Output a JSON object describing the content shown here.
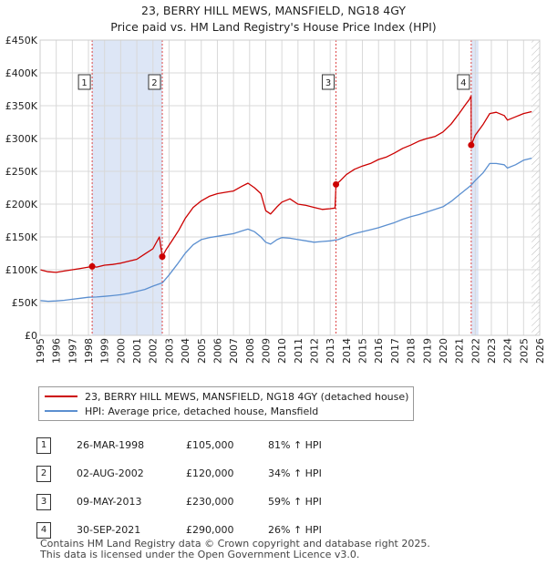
{
  "title_line1": "23, BERRY HILL MEWS, MANSFIELD, NG18 4GY",
  "title_line2": "Price paid vs. HM Land Registry's House Price Index (HPI)",
  "colors": {
    "property": "#cc0000",
    "hpi": "#5b8fd0",
    "shade": "#dde6f6",
    "grid": "#d8d8d8"
  },
  "chart_data": {
    "type": "line",
    "title": "Price paid vs. HM Land Registry's House Price Index (HPI)",
    "xlabel": "",
    "ylabel": "",
    "xlim": [
      1995,
      2026
    ],
    "ylim": [
      0,
      450000
    ],
    "x_ticks": [
      "1995",
      "1996",
      "1997",
      "1998",
      "1999",
      "2000",
      "2001",
      "2002",
      "2003",
      "2004",
      "2005",
      "2006",
      "2007",
      "2008",
      "2009",
      "2010",
      "2011",
      "2012",
      "2013",
      "2014",
      "2015",
      "2016",
      "2017",
      "2018",
      "2019",
      "2020",
      "2021",
      "2022",
      "2023",
      "2024",
      "2025",
      "2026"
    ],
    "y_ticks": [
      {
        "value": 0,
        "label": "£0"
      },
      {
        "value": 50000,
        "label": "£50K"
      },
      {
        "value": 100000,
        "label": "£100K"
      },
      {
        "value": 150000,
        "label": "£150K"
      },
      {
        "value": 200000,
        "label": "£200K"
      },
      {
        "value": 250000,
        "label": "£250K"
      },
      {
        "value": 300000,
        "label": "£300K"
      },
      {
        "value": 350000,
        "label": "£350K"
      },
      {
        "value": 400000,
        "label": "£400K"
      },
      {
        "value": 450000,
        "label": "£450K"
      }
    ],
    "shaded_periods": [
      [
        1998.23,
        2002.58
      ],
      [
        2021.75,
        2022.2
      ]
    ],
    "future_hatch_from": 2025.5,
    "series": [
      {
        "name": "23, BERRY HILL MEWS, MANSFIELD, NG18 4GY (detached house)",
        "color": "#cc0000",
        "points": [
          [
            1995.0,
            100000
          ],
          [
            1995.5,
            97000
          ],
          [
            1996.0,
            96000
          ],
          [
            1996.5,
            98000
          ],
          [
            1997.0,
            100000
          ],
          [
            1997.5,
            102000
          ],
          [
            1998.0,
            104000
          ],
          [
            1998.23,
            105000
          ],
          [
            1998.5,
            104000
          ],
          [
            1999.0,
            107000
          ],
          [
            1999.5,
            108000
          ],
          [
            2000.0,
            110000
          ],
          [
            2000.5,
            113000
          ],
          [
            2001.0,
            116000
          ],
          [
            2001.5,
            124000
          ],
          [
            2002.0,
            132000
          ],
          [
            2002.4,
            150000
          ],
          [
            2002.58,
            120000
          ],
          [
            2002.8,
            130000
          ],
          [
            2003.2,
            145000
          ],
          [
            2003.6,
            160000
          ],
          [
            2004.0,
            178000
          ],
          [
            2004.5,
            195000
          ],
          [
            2005.0,
            205000
          ],
          [
            2005.5,
            212000
          ],
          [
            2006.0,
            216000
          ],
          [
            2006.5,
            218000
          ],
          [
            2007.0,
            220000
          ],
          [
            2007.5,
            227000
          ],
          [
            2007.9,
            232000
          ],
          [
            2008.3,
            225000
          ],
          [
            2008.7,
            216000
          ],
          [
            2009.0,
            190000
          ],
          [
            2009.3,
            185000
          ],
          [
            2009.7,
            196000
          ],
          [
            2010.0,
            203000
          ],
          [
            2010.5,
            208000
          ],
          [
            2011.0,
            200000
          ],
          [
            2011.5,
            198000
          ],
          [
            2012.0,
            195000
          ],
          [
            2012.5,
            192000
          ],
          [
            2013.0,
            193000
          ],
          [
            2013.3,
            194000
          ],
          [
            2013.36,
            230000
          ],
          [
            2013.6,
            235000
          ],
          [
            2014.0,
            245000
          ],
          [
            2014.5,
            253000
          ],
          [
            2015.0,
            258000
          ],
          [
            2015.5,
            262000
          ],
          [
            2016.0,
            268000
          ],
          [
            2016.5,
            272000
          ],
          [
            2017.0,
            278000
          ],
          [
            2017.5,
            285000
          ],
          [
            2018.0,
            290000
          ],
          [
            2018.5,
            296000
          ],
          [
            2019.0,
            300000
          ],
          [
            2019.5,
            303000
          ],
          [
            2020.0,
            310000
          ],
          [
            2020.5,
            322000
          ],
          [
            2021.0,
            338000
          ],
          [
            2021.4,
            352000
          ],
          [
            2021.65,
            360000
          ],
          [
            2021.74,
            365000
          ],
          [
            2021.75,
            290000
          ],
          [
            2022.0,
            305000
          ],
          [
            2022.5,
            322000
          ],
          [
            2022.9,
            338000
          ],
          [
            2023.3,
            340000
          ],
          [
            2023.8,
            335000
          ],
          [
            2024.0,
            328000
          ],
          [
            2024.5,
            333000
          ],
          [
            2025.0,
            338000
          ],
          [
            2025.5,
            341000
          ]
        ]
      },
      {
        "name": "HPI: Average price, detached house, Mansfield",
        "color": "#5b8fd0",
        "points": [
          [
            1995.0,
            53000
          ],
          [
            1995.5,
            52000
          ],
          [
            1996.0,
            52500
          ],
          [
            1996.5,
            53500
          ],
          [
            1997.0,
            55000
          ],
          [
            1997.5,
            56500
          ],
          [
            1998.0,
            58000
          ],
          [
            1998.5,
            58500
          ],
          [
            1999.0,
            59500
          ],
          [
            1999.5,
            60500
          ],
          [
            2000.0,
            62000
          ],
          [
            2000.5,
            64000
          ],
          [
            2001.0,
            67000
          ],
          [
            2001.5,
            70000
          ],
          [
            2002.0,
            75000
          ],
          [
            2002.58,
            80000
          ],
          [
            2003.0,
            92000
          ],
          [
            2003.5,
            108000
          ],
          [
            2004.0,
            125000
          ],
          [
            2004.5,
            138000
          ],
          [
            2005.0,
            146000
          ],
          [
            2005.5,
            149000
          ],
          [
            2006.0,
            151000
          ],
          [
            2006.5,
            153000
          ],
          [
            2007.0,
            155000
          ],
          [
            2007.5,
            159000
          ],
          [
            2007.9,
            162000
          ],
          [
            2008.3,
            158000
          ],
          [
            2008.7,
            150000
          ],
          [
            2009.0,
            142000
          ],
          [
            2009.3,
            139000
          ],
          [
            2009.7,
            146000
          ],
          [
            2010.0,
            149000
          ],
          [
            2010.5,
            148000
          ],
          [
            2011.0,
            146000
          ],
          [
            2011.5,
            144000
          ],
          [
            2012.0,
            142000
          ],
          [
            2012.5,
            143000
          ],
          [
            2013.0,
            144000
          ],
          [
            2013.5,
            146000
          ],
          [
            2014.0,
            151000
          ],
          [
            2014.5,
            155000
          ],
          [
            2015.0,
            158000
          ],
          [
            2015.5,
            161000
          ],
          [
            2016.0,
            164000
          ],
          [
            2016.5,
            168000
          ],
          [
            2017.0,
            172000
          ],
          [
            2017.5,
            177000
          ],
          [
            2018.0,
            181000
          ],
          [
            2018.5,
            184000
          ],
          [
            2019.0,
            188000
          ],
          [
            2019.5,
            192000
          ],
          [
            2020.0,
            196000
          ],
          [
            2020.5,
            204000
          ],
          [
            2021.0,
            214000
          ],
          [
            2021.5,
            224000
          ],
          [
            2021.75,
            229000
          ],
          [
            2022.0,
            236000
          ],
          [
            2022.5,
            248000
          ],
          [
            2022.9,
            262000
          ],
          [
            2023.3,
            262000
          ],
          [
            2023.8,
            260000
          ],
          [
            2024.0,
            255000
          ],
          [
            2024.5,
            260000
          ],
          [
            2025.0,
            267000
          ],
          [
            2025.5,
            270000
          ]
        ]
      }
    ],
    "sales": [
      {
        "id": "1",
        "year": 1998.23,
        "price": 105000,
        "date": "26-MAR-1998",
        "price_label": "£105,000",
        "hpi": "81% ↑ HPI"
      },
      {
        "id": "2",
        "year": 2002.58,
        "price": 120000,
        "date": "02-AUG-2002",
        "price_label": "£120,000",
        "hpi": "34% ↑ HPI"
      },
      {
        "id": "3",
        "year": 2013.36,
        "price": 230000,
        "date": "09-MAY-2013",
        "price_label": "£230,000",
        "hpi": "59% ↑ HPI"
      },
      {
        "id": "4",
        "year": 2021.75,
        "price": 290000,
        "date": "30-SEP-2021",
        "price_label": "£290,000",
        "hpi": "26% ↑ HPI"
      }
    ]
  },
  "legend": {
    "property": "23, BERRY HILL MEWS, MANSFIELD, NG18 4GY (detached house)",
    "hpi": "HPI: Average price, detached house, Mansfield"
  },
  "transactions": [
    {
      "id": "1",
      "date": "26-MAR-1998",
      "price": "£105,000",
      "hpi": "81% ↑ HPI"
    },
    {
      "id": "2",
      "date": "02-AUG-2002",
      "price": "£120,000",
      "hpi": "34% ↑ HPI"
    },
    {
      "id": "3",
      "date": "09-MAY-2013",
      "price": "£230,000",
      "hpi": "59% ↑ HPI"
    },
    {
      "id": "4",
      "date": "30-SEP-2021",
      "price": "£290,000",
      "hpi": "26% ↑ HPI"
    }
  ],
  "footer": {
    "line1": "Contains HM Land Registry data © Crown copyright and database right 2025.",
    "line2": "This data is licensed under the Open Government Licence v3.0."
  }
}
